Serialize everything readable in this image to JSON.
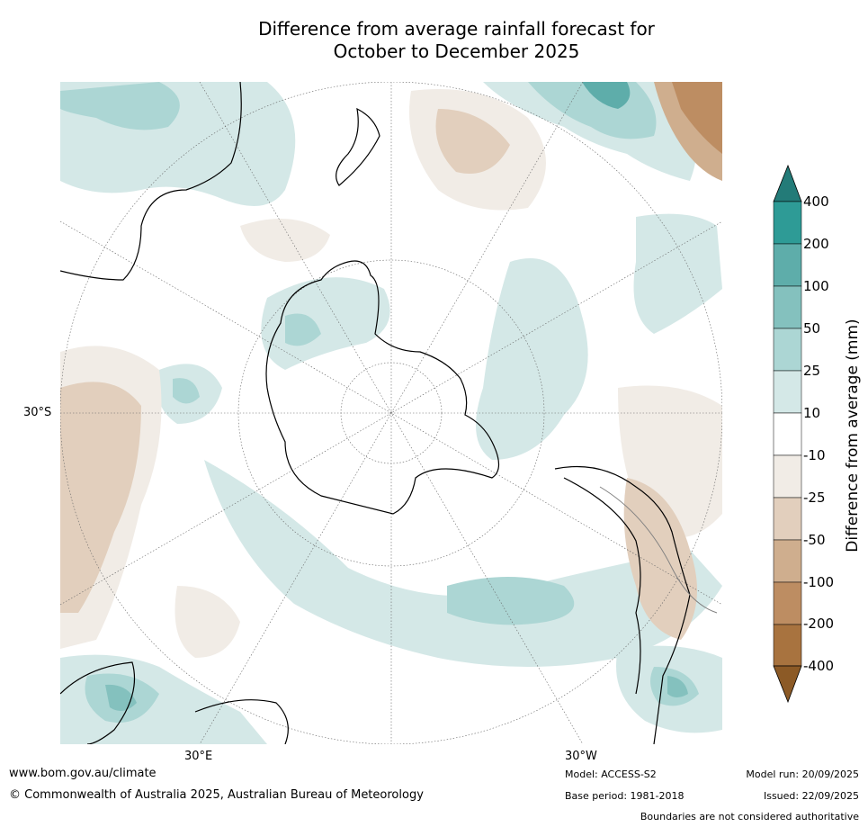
{
  "title_line1": "Difference from average rainfall forecast for",
  "title_line2": "October to December 2025",
  "map": {
    "lat_label": "30°S",
    "lon_label_east": "30°E",
    "lon_label_west": "30°W"
  },
  "colorbar": {
    "label": "Difference from average (mm)",
    "ticks": [
      "400",
      "200",
      "100",
      "50",
      "25",
      "10",
      "-10",
      "-25",
      "-50",
      "-100",
      "-200",
      "-400"
    ],
    "colors": {
      "extend_high": "#237b78",
      "400_plus": "#2e9b96",
      "200_400": "#5eadaa",
      "100_200": "#84c1be",
      "50_100": "#acd6d4",
      "25_50": "#d4e8e7",
      "10_25": "#ffffff",
      "neutral": "#ffffff",
      "minus10_minus25": "#f1ece6",
      "minus25_minus50": "#e2cfbd",
      "minus50_minus100": "#cfae8e",
      "minus100_minus200": "#bd8d62",
      "minus200_minus400": "#a8733f",
      "extend_low": "#8c5a26"
    }
  },
  "footer": {
    "website": "www.bom.gov.au/climate",
    "copyright": "© Commonwealth of Australia 2025, Australian Bureau of Meteorology",
    "model": "Model: ACCESS-S2",
    "base_period": "Base period: 1981-2018",
    "model_run": "Model run: 20/09/2025",
    "issued": "Issued: 22/09/2025",
    "disclaimer": "Boundaries are not considered authoritative"
  }
}
